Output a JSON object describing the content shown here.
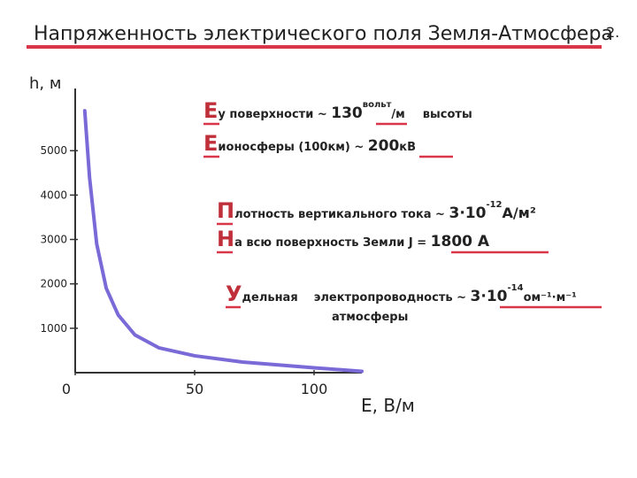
{
  "chart_data": {
    "type": "line",
    "x": [
      4,
      6,
      9,
      13,
      18,
      25,
      35,
      50,
      70,
      100,
      120
    ],
    "values": [
      5900,
      4400,
      2900,
      1900,
      1300,
      850,
      560,
      380,
      240,
      110,
      30
    ],
    "color": "#7a6ad8",
    "xlim": [
      0,
      120
    ],
    "ylim": [
      0,
      6400
    ],
    "xticks": [
      0,
      50,
      100
    ],
    "yticks": [
      1000,
      2000,
      3000,
      4000,
      5000
    ],
    "xlabel": "E, В/м",
    "ylabel": "h, м"
  },
  "slide": {
    "title": "Напряженность электрического поля Земля-Атмосфера",
    "page": "2.",
    "notes": [
      [
        "Е",
        "у поверхности ~ ",
        "130",
        "вольт",
        "/м",
        "высоты"
      ],
      [
        "Е",
        "ионосферы (100км) ~ ",
        "200",
        "кВ"
      ],
      [
        "П",
        "лотность вертикального тока ~ ",
        "3·10",
        "-12",
        "А/м²"
      ],
      [
        "Н",
        "а всю поверхность Земли  J = ",
        "1800 А"
      ],
      [
        "У",
        "дельная",
        "электропроводность ~ ",
        "3·10",
        "-14",
        "ом⁻¹·м⁻¹"
      ],
      [
        "атмосферы"
      ]
    ]
  }
}
